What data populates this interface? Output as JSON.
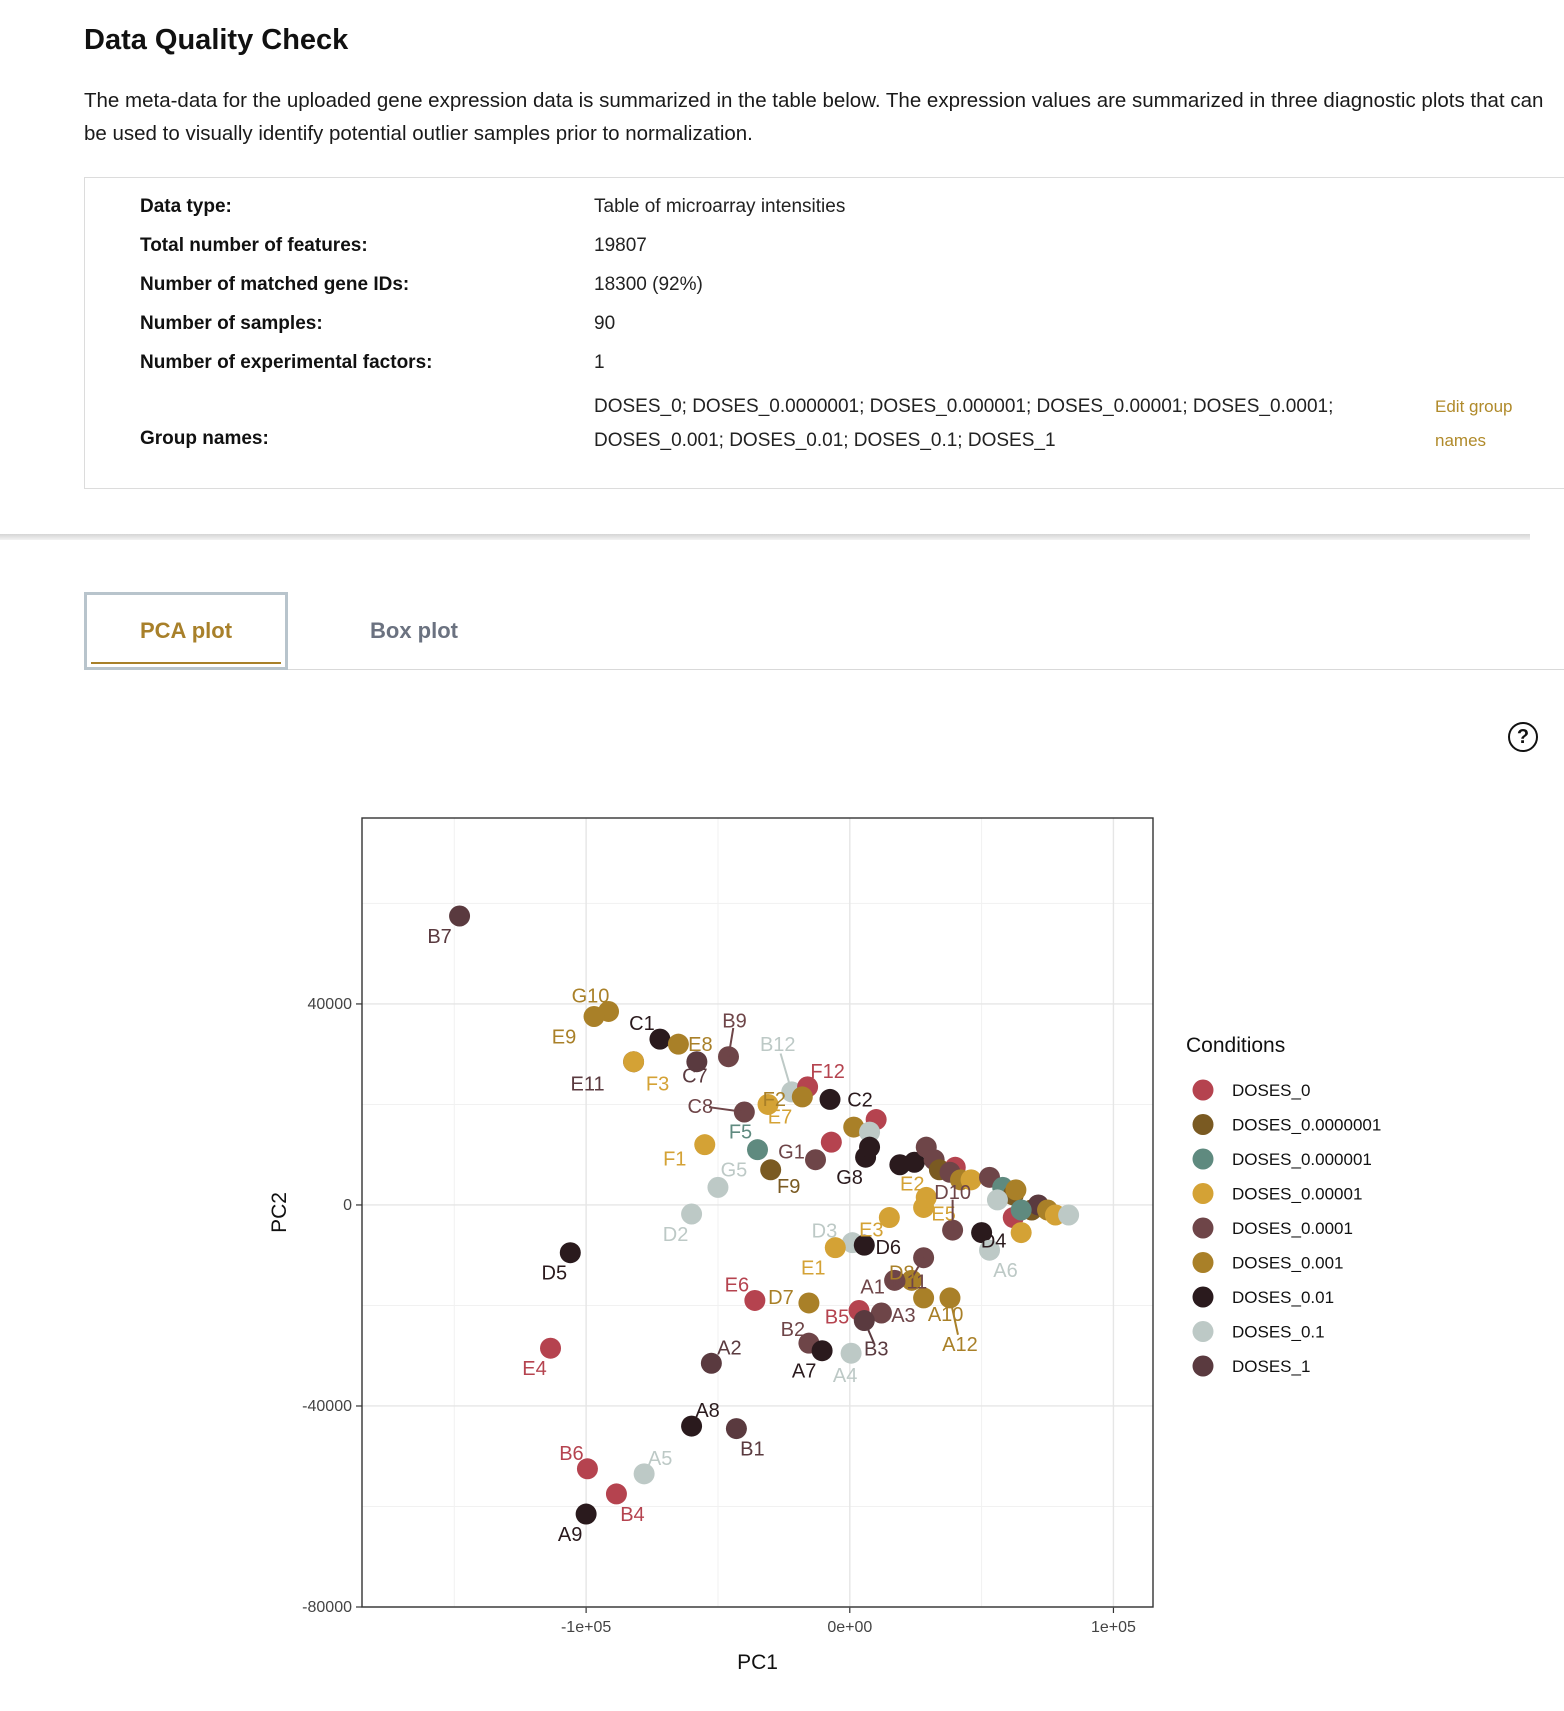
{
  "page": {
    "title": "Data Quality Check",
    "description": "The meta-data for the uploaded gene expression data is summarized in the table below. The expression values are summarized in three diagnostic plots that can be used to visually identify potential outlier samples prior to normalization."
  },
  "meta": {
    "data_type_label": "Data type:",
    "data_type_value": "Table of microarray intensities",
    "features_label": "Total number of features:",
    "features_value": "19807",
    "matched_label": "Number of matched gene IDs:",
    "matched_value": "18300 (92%)",
    "samples_label": "Number of samples:",
    "samples_value": "90",
    "factors_label": "Number of experimental factors:",
    "factors_value": "1",
    "groups_label": "Group names:",
    "groups_line1": "DOSES_0; DOSES_0.0000001; DOSES_0.000001; DOSES_0.00001; DOSES_0.0001;",
    "groups_line2": "DOSES_0.001; DOSES_0.01; DOSES_0.1; DOSES_1",
    "edit_line1": "Edit group",
    "edit_line2": "names"
  },
  "tabs": {
    "pca": "PCA plot",
    "box": "Box plot"
  },
  "help_icon": "question-circle-icon",
  "help_glyph": "?",
  "chart_data": {
    "type": "scatter",
    "xlabel": "PC1",
    "ylabel": "PC2",
    "xlim": [
      -185000,
      115000
    ],
    "ylim": [
      -80000,
      77000
    ],
    "x_ticks": [
      -100000,
      0,
      100000
    ],
    "x_tick_labels": [
      "-1e+05",
      "0e+00",
      "1e+05"
    ],
    "y_ticks": [
      40000,
      0,
      -40000,
      -80000
    ],
    "y_tick_labels": [
      "40000",
      "0",
      "-40000",
      "-80000"
    ],
    "grid": true,
    "legend_title": "Conditions",
    "legend_position": "right",
    "groups": [
      {
        "name": "DOSES_0",
        "color": "#b5434f"
      },
      {
        "name": "DOSES_0.0000001",
        "color": "#7a5a22"
      },
      {
        "name": "DOSES_0.000001",
        "color": "#5f8a7f"
      },
      {
        "name": "DOSES_0.00001",
        "color": "#d4a235"
      },
      {
        "name": "DOSES_0.0001",
        "color": "#6e4548"
      },
      {
        "name": "DOSES_0.001",
        "color": "#a98028"
      },
      {
        "name": "DOSES_0.01",
        "color": "#2a1a1d"
      },
      {
        "name": "DOSES_0.1",
        "color": "#bdc9c6"
      },
      {
        "name": "DOSES_1",
        "color": "#5a3a3f"
      }
    ],
    "points": [
      {
        "label": "B7",
        "x": -148000,
        "y": 57500,
        "group": "DOSES_1"
      },
      {
        "label": "G10",
        "x": -91500,
        "y": 38500,
        "group": "DOSES_0.001"
      },
      {
        "label": "E9",
        "x": -97000,
        "y": 37500,
        "group": "DOSES_0.001"
      },
      {
        "label": "C1",
        "x": -72000,
        "y": 33000,
        "group": "DOSES_0.01"
      },
      {
        "label": "E8",
        "x": -65000,
        "y": 32000,
        "group": "DOSES_0.001"
      },
      {
        "label": "B9",
        "x": -46000,
        "y": 29500,
        "group": "DOSES_0.0001"
      },
      {
        "label": "C7",
        "x": -58000,
        "y": 28500,
        "group": "DOSES_1"
      },
      {
        "label": "E11",
        "x": -82000,
        "y": 28500,
        "group": "DOSES_1"
      },
      {
        "label": "F3",
        "x": -82000,
        "y": 28500,
        "group": "DOSES_0.00001"
      },
      {
        "label": "B12",
        "x": -22000,
        "y": 22500,
        "group": "DOSES_0.1"
      },
      {
        "label": "F12",
        "x": -16000,
        "y": 23500,
        "group": "DOSES_0"
      },
      {
        "label": "F2",
        "x": -18000,
        "y": 21500,
        "group": "DOSES_0.001"
      },
      {
        "label": "C2",
        "x": -7500,
        "y": 21000,
        "group": "DOSES_0.01"
      },
      {
        "label": "C8",
        "x": -40000,
        "y": 18500,
        "group": "DOSES_0.0001"
      },
      {
        "label": "E7",
        "x": -31000,
        "y": 20000,
        "group": "DOSES_0.00001"
      },
      {
        "label": "F5",
        "x": -35000,
        "y": 11000,
        "group": "DOSES_0.000001"
      },
      {
        "label": "F1",
        "x": -55000,
        "y": 12000,
        "group": "DOSES_0.00001"
      },
      {
        "label": "G5",
        "x": -50000,
        "y": 3500,
        "group": "DOSES_0.1"
      },
      {
        "label": "F9",
        "x": -30000,
        "y": 7000,
        "group": "DOSES_0.0000001"
      },
      {
        "label": "G1",
        "x": -13000,
        "y": 9000,
        "group": "DOSES_0.0001"
      },
      {
        "label": "G8",
        "x": 6000,
        "y": 9500,
        "group": "DOSES_0.01"
      },
      {
        "label": "D2",
        "x": -60000,
        "y": -1800,
        "group": "DOSES_0.1"
      },
      {
        "label": "D5",
        "x": -106000,
        "y": -9500,
        "group": "DOSES_0.01"
      },
      {
        "label": "D3",
        "x": 1000,
        "y": -7500,
        "group": "DOSES_0.1"
      },
      {
        "label": "E1",
        "x": -5500,
        "y": -8500,
        "group": "DOSES_0.00001"
      },
      {
        "label": "D6",
        "x": 5500,
        "y": -8000,
        "group": "DOSES_0.01"
      },
      {
        "label": "E3",
        "x": 15000,
        "y": -2500,
        "group": "DOSES_0.00001"
      },
      {
        "label": "E5",
        "x": 28000,
        "y": -500,
        "group": "DOSES_0.00001"
      },
      {
        "label": "E2",
        "x": 29000,
        "y": 1500,
        "group": "DOSES_0.00001"
      },
      {
        "label": "D10",
        "x": 39000,
        "y": -5000,
        "group": "DOSES_0.0001"
      },
      {
        "label": "D11",
        "x": 28000,
        "y": -10500,
        "group": "DOSES_0.0001"
      },
      {
        "label": "D4",
        "x": 50000,
        "y": -5500,
        "group": "DOSES_0.01"
      },
      {
        "label": "A6",
        "x": 53000,
        "y": -9000,
        "group": "DOSES_0.1"
      },
      {
        "label": "D8",
        "x": 23500,
        "y": -15000,
        "group": "DOSES_0.001"
      },
      {
        "label": "A1",
        "x": 17000,
        "y": -15000,
        "group": "DOSES_0.0001"
      },
      {
        "label": "E6",
        "x": -36000,
        "y": -19000,
        "group": "DOSES_0"
      },
      {
        "label": "D7",
        "x": -15500,
        "y": -19500,
        "group": "DOSES_0.001"
      },
      {
        "label": "B5",
        "x": 3500,
        "y": -21000,
        "group": "DOSES_0"
      },
      {
        "label": "A3",
        "x": 12000,
        "y": -21500,
        "group": "DOSES_0.0001"
      },
      {
        "label": "A10",
        "x": 28000,
        "y": -18500,
        "group": "DOSES_0.001"
      },
      {
        "label": "A12",
        "x": 38000,
        "y": -18500,
        "group": "DOSES_0.001"
      },
      {
        "label": "B2",
        "x": -15500,
        "y": -27500,
        "group": "DOSES_0.0001"
      },
      {
        "label": "A7",
        "x": -10500,
        "y": -29000,
        "group": "DOSES_0.01"
      },
      {
        "label": "B3",
        "x": 5500,
        "y": -23000,
        "group": "DOSES_1"
      },
      {
        "label": "A4",
        "x": 500,
        "y": -29500,
        "group": "DOSES_0.1"
      },
      {
        "label": "A2",
        "x": -52500,
        "y": -31500,
        "group": "DOSES_1"
      },
      {
        "label": "E4",
        "x": -113500,
        "y": -28500,
        "group": "DOSES_0"
      },
      {
        "label": "A8",
        "x": -60000,
        "y": -44000,
        "group": "DOSES_0.01"
      },
      {
        "label": "B1",
        "x": -43000,
        "y": -44500,
        "group": "DOSES_1"
      },
      {
        "label": "B6",
        "x": -99500,
        "y": -52500,
        "group": "DOSES_0"
      },
      {
        "label": "A5",
        "x": -78000,
        "y": -53500,
        "group": "DOSES_0.1"
      },
      {
        "label": "B4",
        "x": -88500,
        "y": -57500,
        "group": "DOSES_0"
      },
      {
        "label": "A9",
        "x": -100000,
        "y": -61500,
        "group": "DOSES_0.01"
      },
      {
        "label": "",
        "x": 10000,
        "y": 17000,
        "group": "DOSES_0"
      },
      {
        "label": "",
        "x": 1500,
        "y": 15500,
        "group": "DOSES_0.001"
      },
      {
        "label": "",
        "x": 7500,
        "y": 14500,
        "group": "DOSES_0.1"
      },
      {
        "label": "",
        "x": 7500,
        "y": 11500,
        "group": "DOSES_0.01"
      },
      {
        "label": "",
        "x": -7000,
        "y": 12500,
        "group": "DOSES_0"
      },
      {
        "label": "",
        "x": 19000,
        "y": 8000,
        "group": "DOSES_0.01"
      },
      {
        "label": "",
        "x": 24500,
        "y": 8500,
        "group": "DOSES_0.01"
      },
      {
        "label": "",
        "x": 29000,
        "y": 11500,
        "group": "DOSES_0.0001"
      },
      {
        "label": "",
        "x": 32000,
        "y": 9000,
        "group": "DOSES_0.0001"
      },
      {
        "label": "",
        "x": 34000,
        "y": 7000,
        "group": "DOSES_0.0000001"
      },
      {
        "label": "",
        "x": 40000,
        "y": 7500,
        "group": "DOSES_0"
      },
      {
        "label": "",
        "x": 38000,
        "y": 6500,
        "group": "DOSES_0.0001"
      },
      {
        "label": "",
        "x": 42000,
        "y": 5000,
        "group": "DOSES_0.001"
      },
      {
        "label": "",
        "x": 46000,
        "y": 5000,
        "group": "DOSES_0.00001"
      },
      {
        "label": "",
        "x": 53000,
        "y": 5500,
        "group": "DOSES_0.0001"
      },
      {
        "label": "",
        "x": 58000,
        "y": 3500,
        "group": "DOSES_0.000001"
      },
      {
        "label": "",
        "x": 62000,
        "y": 2000,
        "group": "DOSES_0.0000001"
      },
      {
        "label": "",
        "x": 63000,
        "y": 3000,
        "group": "DOSES_0.001"
      },
      {
        "label": "",
        "x": 56000,
        "y": 1000,
        "group": "DOSES_0.1"
      },
      {
        "label": "",
        "x": 62000,
        "y": -2500,
        "group": "DOSES_0"
      },
      {
        "label": "",
        "x": 65000,
        "y": -5500,
        "group": "DOSES_0.00001"
      },
      {
        "label": "",
        "x": 69000,
        "y": -1000,
        "group": "DOSES_0.0000001"
      },
      {
        "label": "",
        "x": 71500,
        "y": 0,
        "group": "DOSES_1"
      },
      {
        "label": "",
        "x": 75000,
        "y": -1000,
        "group": "DOSES_0.001"
      },
      {
        "label": "",
        "x": 78000,
        "y": -2000,
        "group": "DOSES_0.00001"
      },
      {
        "label": "",
        "x": 83000,
        "y": -2000,
        "group": "DOSES_0.1"
      },
      {
        "label": "",
        "x": 65000,
        "y": -1000,
        "group": "DOSES_0.000001"
      }
    ]
  }
}
